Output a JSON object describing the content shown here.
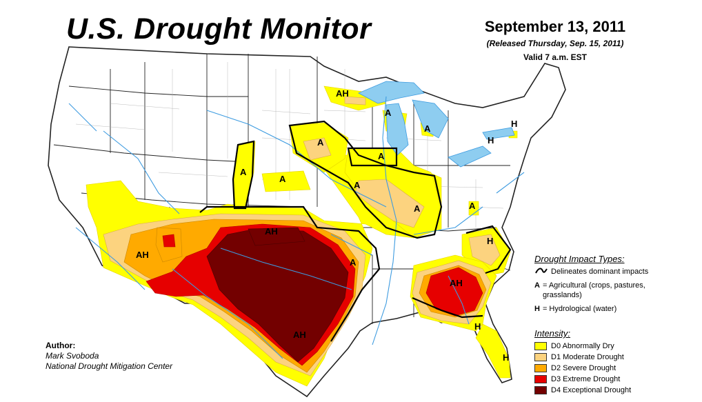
{
  "title": "U.S. Drought Monitor",
  "date": {
    "main": "September 13, 2011",
    "released": "(Released Thursday, Sep. 15, 2011)",
    "valid": "Valid 7 a.m. EST"
  },
  "author": {
    "heading": "Author:",
    "name": "Mark Svoboda",
    "org": "National Drought Mitigation Center"
  },
  "impact_legend": {
    "heading": "Drought Impact Types:",
    "items": [
      {
        "symbol": "",
        "text": "Delineates dominant impacts"
      },
      {
        "symbol": "A",
        "text": "= Agricultural (crops, pastures, grasslands)"
      },
      {
        "symbol": "H",
        "text": "= Hydrological (water)"
      }
    ]
  },
  "intensity_legend": {
    "heading": "Intensity:",
    "items": [
      {
        "label": "D0 Abnormally Dry",
        "color": "#ffff00"
      },
      {
        "label": "D1 Moderate Drought",
        "color": "#fcd37f"
      },
      {
        "label": "D2 Severe Drought",
        "color": "#ffaa00"
      },
      {
        "label": "D3 Extreme Drought",
        "color": "#e60000"
      },
      {
        "label": "D4 Exceptional Drought",
        "color": "#730000"
      }
    ]
  },
  "map_labels": [
    "AH",
    "A",
    "A",
    "H",
    "H",
    "A",
    "A",
    "A",
    "A",
    "A",
    "A",
    "A",
    "AH",
    "AH",
    "A",
    "H",
    "AH",
    "AH",
    "H",
    "H"
  ],
  "colors": {
    "water": "#8ecdf0",
    "river": "#3d9be0",
    "state_border": "#222222",
    "county_border": "#9a9a9a"
  }
}
